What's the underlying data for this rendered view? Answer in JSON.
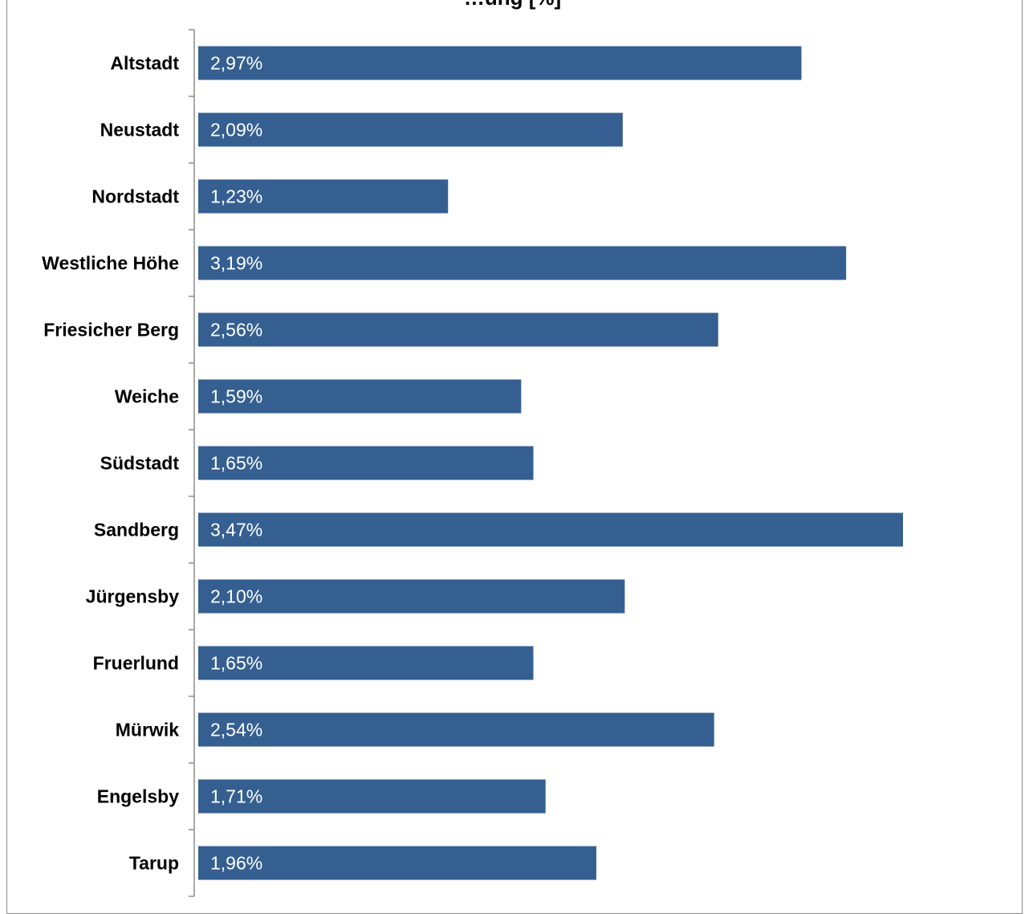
{
  "chart_data": {
    "type": "bar",
    "orientation": "horizontal",
    "title": "…ung [%]",
    "categories": [
      "Altstadt",
      "Neustadt",
      "Nordstadt",
      "Westliche Höhe",
      "Friesicher Berg",
      "Weiche",
      "Südstadt",
      "Sandberg",
      "Jürgensby",
      "Fruerlund",
      "Mürwik",
      "Engelsby",
      "Tarup"
    ],
    "values": [
      2.97,
      2.09,
      1.23,
      3.19,
      2.56,
      1.59,
      1.65,
      3.47,
      2.1,
      1.65,
      2.54,
      1.71,
      1.96
    ],
    "value_labels": [
      "2,97%",
      "2,09%",
      "1,23%",
      "3,19%",
      "2,56%",
      "1,59%",
      "1,65%",
      "3,47%",
      "2,10%",
      "1,65%",
      "2,54%",
      "1,71%",
      "1,96%"
    ],
    "xlim": [
      0,
      4
    ],
    "bar_color": "#355F91",
    "grid": false,
    "legend": "none"
  }
}
